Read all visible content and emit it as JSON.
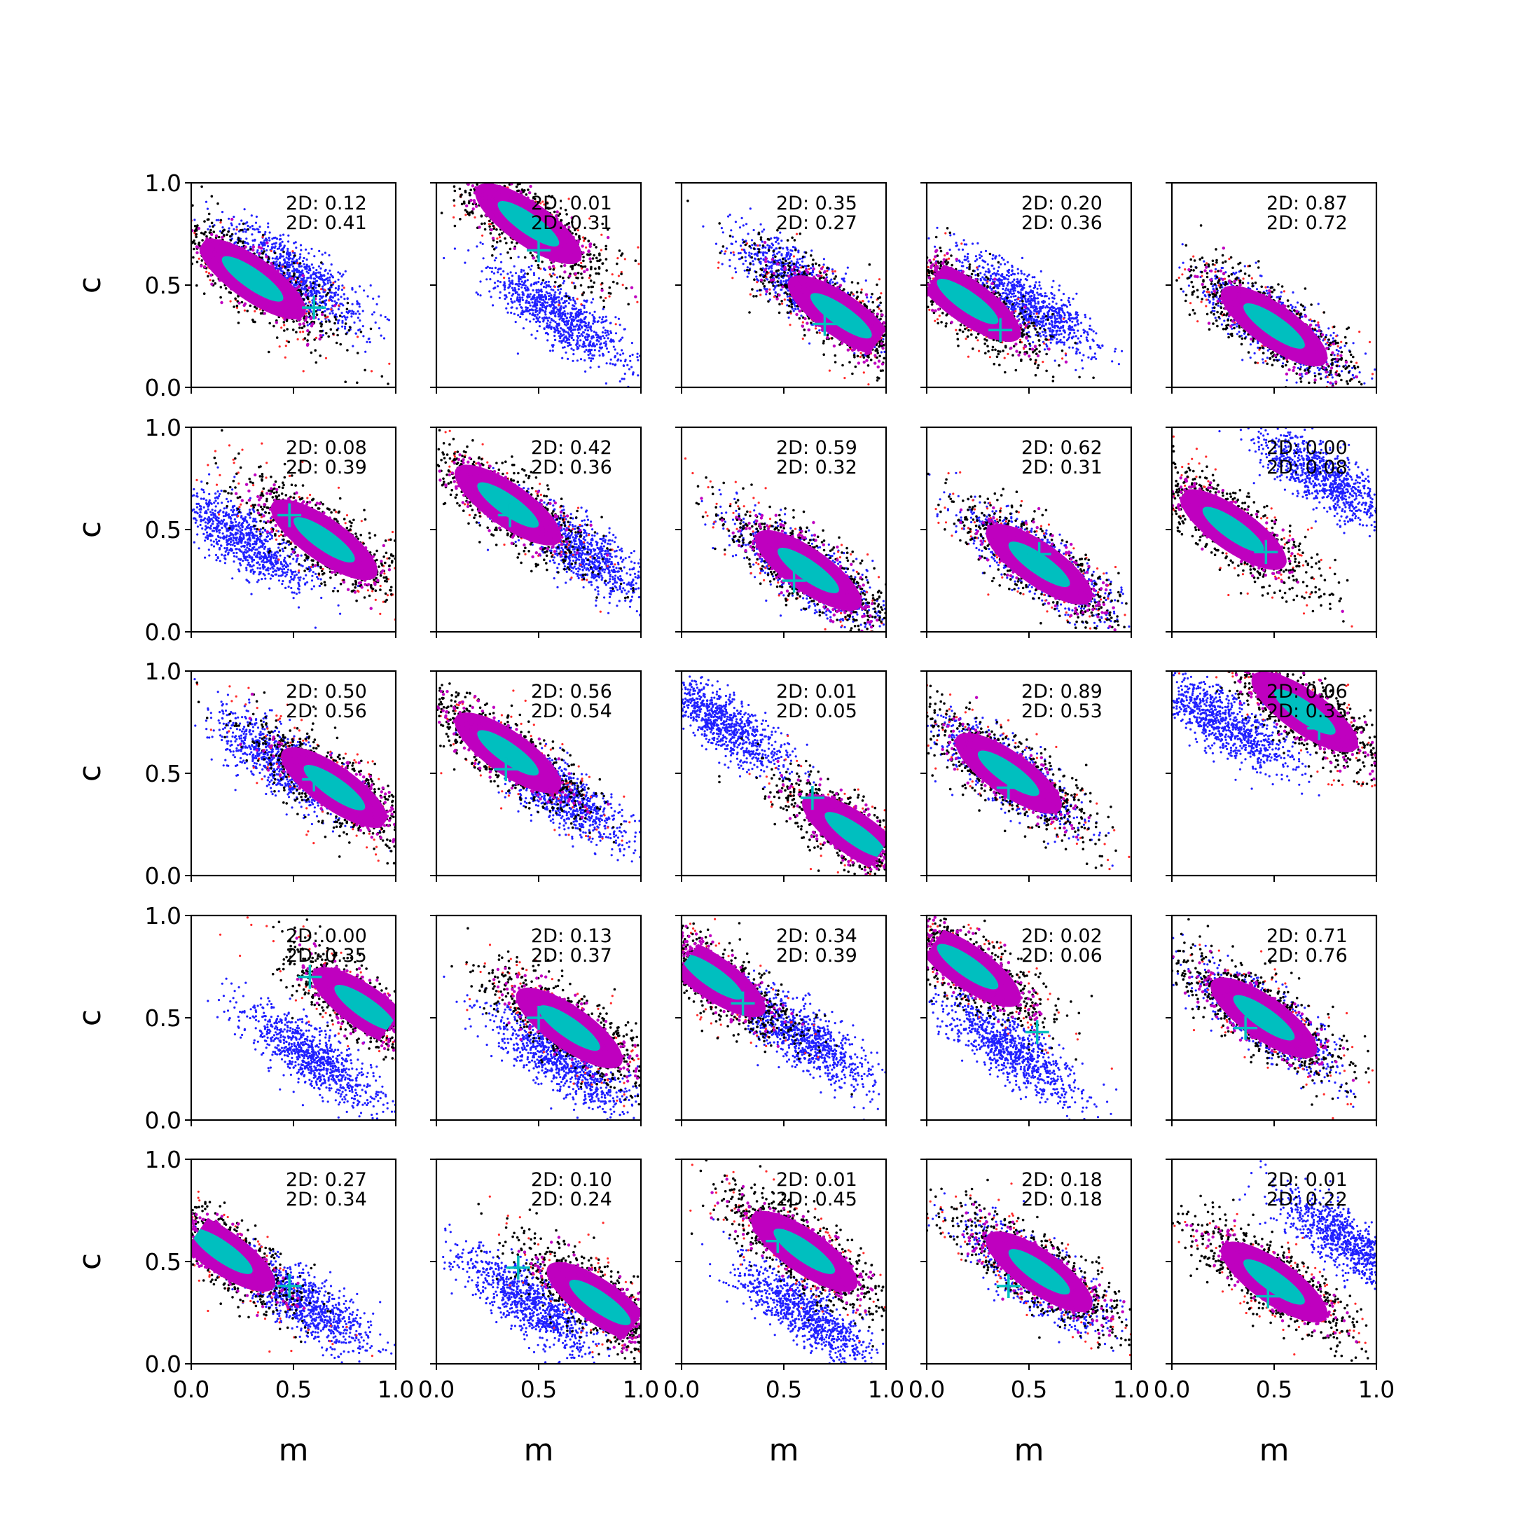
{
  "figure": {
    "xlabel": "m",
    "ylabel": "c",
    "xlim": [
      0,
      1
    ],
    "ylim": [
      0,
      1
    ],
    "x_ticks": [
      "0.0",
      "0.5",
      "1.0"
    ],
    "y_ticks": [
      "0.0",
      "0.5",
      "1.0"
    ],
    "colors": {
      "blue": "#2020ff",
      "red": "#ff2a2a",
      "black": "#000000",
      "magenta": "#bf00bf",
      "cyan": "#00bfbf"
    }
  },
  "chart_data": [
    {
      "type": "scatter",
      "row": 0,
      "col": 0,
      "annotations": [
        "2D: 0.12",
        "2D: 0.41"
      ],
      "main": {
        "cx": 0.3,
        "cy": 0.53
      },
      "offset": {
        "cx": 0.5,
        "cy": 0.55
      },
      "marker": {
        "x": 0.6,
        "y": 0.39
      }
    },
    {
      "type": "scatter",
      "row": 0,
      "col": 1,
      "annotations": [
        "2D: 0.01",
        "2D: 0.31"
      ],
      "main": {
        "cx": 0.45,
        "cy": 0.8
      },
      "offset": {
        "cx": 0.6,
        "cy": 0.35
      },
      "marker": {
        "x": 0.5,
        "y": 0.67
      }
    },
    {
      "type": "scatter",
      "row": 0,
      "col": 2,
      "annotations": [
        "2D: 0.35",
        "2D: 0.27"
      ],
      "main": {
        "cx": 0.78,
        "cy": 0.35
      },
      "offset": {
        "cx": 0.6,
        "cy": 0.5
      },
      "marker": {
        "x": 0.7,
        "y": 0.31
      }
    },
    {
      "type": "scatter",
      "row": 0,
      "col": 3,
      "annotations": [
        "2D: 0.20",
        "2D: 0.36"
      ],
      "main": {
        "cx": 0.2,
        "cy": 0.42
      },
      "offset": {
        "cx": 0.5,
        "cy": 0.4
      },
      "marker": {
        "x": 0.36,
        "y": 0.28
      }
    },
    {
      "type": "scatter",
      "row": 0,
      "col": 4,
      "annotations": [
        "2D: 0.87",
        "2D: 0.72"
      ],
      "main": {
        "cx": 0.5,
        "cy": 0.3
      },
      "offset": {
        "cx": 0.5,
        "cy": 0.3
      },
      "marker": {
        "x": 0.5,
        "y": 0.3
      }
    },
    {
      "type": "scatter",
      "row": 1,
      "col": 0,
      "annotations": [
        "2D: 0.08",
        "2D: 0.39"
      ],
      "main": {
        "cx": 0.65,
        "cy": 0.45
      },
      "offset": {
        "cx": 0.25,
        "cy": 0.45
      },
      "marker": {
        "x": 0.48,
        "y": 0.57
      }
    },
    {
      "type": "scatter",
      "row": 1,
      "col": 1,
      "annotations": [
        "2D: 0.42",
        "2D: 0.36"
      ],
      "main": {
        "cx": 0.35,
        "cy": 0.62
      },
      "offset": {
        "cx": 0.7,
        "cy": 0.4
      },
      "marker": {
        "x": 0.36,
        "y": 0.57
      }
    },
    {
      "type": "scatter",
      "row": 1,
      "col": 2,
      "annotations": [
        "2D: 0.59",
        "2D: 0.32"
      ],
      "main": {
        "cx": 0.62,
        "cy": 0.3
      },
      "offset": {
        "cx": 0.6,
        "cy": 0.3
      },
      "marker": {
        "x": 0.55,
        "y": 0.25
      }
    },
    {
      "type": "scatter",
      "row": 1,
      "col": 3,
      "annotations": [
        "2D: 0.62",
        "2D: 0.31"
      ],
      "main": {
        "cx": 0.55,
        "cy": 0.33
      },
      "offset": {
        "cx": 0.55,
        "cy": 0.33
      },
      "marker": {
        "x": 0.55,
        "y": 0.38
      }
    },
    {
      "type": "scatter",
      "row": 1,
      "col": 4,
      "annotations": [
        "2D: 0.00",
        "2D: 0.08"
      ],
      "main": {
        "cx": 0.3,
        "cy": 0.5
      },
      "offset": {
        "cx": 0.75,
        "cy": 0.75
      },
      "marker": {
        "x": 0.46,
        "y": 0.39
      }
    },
    {
      "type": "scatter",
      "row": 2,
      "col": 0,
      "annotations": [
        "2D: 0.50",
        "2D: 0.56"
      ],
      "main": {
        "cx": 0.7,
        "cy": 0.43
      },
      "offset": {
        "cx": 0.45,
        "cy": 0.55
      },
      "marker": {
        "x": 0.6,
        "y": 0.47
      }
    },
    {
      "type": "scatter",
      "row": 2,
      "col": 1,
      "annotations": [
        "2D: 0.56",
        "2D: 0.54"
      ],
      "main": {
        "cx": 0.35,
        "cy": 0.6
      },
      "offset": {
        "cx": 0.6,
        "cy": 0.4
      },
      "marker": {
        "x": 0.34,
        "y": 0.52
      }
    },
    {
      "type": "scatter",
      "row": 2,
      "col": 2,
      "annotations": [
        "2D: 0.01",
        "2D: 0.05"
      ],
      "main": {
        "cx": 0.85,
        "cy": 0.2
      },
      "offset": {
        "cx": 0.2,
        "cy": 0.75
      },
      "marker": {
        "x": 0.64,
        "y": 0.38
      }
    },
    {
      "type": "scatter",
      "row": 2,
      "col": 3,
      "annotations": [
        "2D: 0.89",
        "2D: 0.53"
      ],
      "main": {
        "cx": 0.4,
        "cy": 0.5
      },
      "offset": {
        "cx": 0.4,
        "cy": 0.5
      },
      "marker": {
        "x": 0.4,
        "y": 0.43
      }
    },
    {
      "type": "scatter",
      "row": 2,
      "col": 4,
      "annotations": [
        "2D: 0.06",
        "2D: 0.35"
      ],
      "main": {
        "cx": 0.65,
        "cy": 0.8
      },
      "offset": {
        "cx": 0.25,
        "cy": 0.75
      },
      "marker": {
        "x": 0.72,
        "y": 0.72
      }
    },
    {
      "type": "scatter",
      "row": 3,
      "col": 0,
      "annotations": [
        "2D: 0.00",
        "2D: 0.35"
      ],
      "main": {
        "cx": 0.85,
        "cy": 0.55
      },
      "offset": {
        "cx": 0.6,
        "cy": 0.3
      },
      "marker": {
        "x": 0.58,
        "y": 0.7
      }
    },
    {
      "type": "scatter",
      "row": 3,
      "col": 1,
      "annotations": [
        "2D: 0.13",
        "2D: 0.37"
      ],
      "main": {
        "cx": 0.65,
        "cy": 0.45
      },
      "offset": {
        "cx": 0.6,
        "cy": 0.3
      },
      "marker": {
        "x": 0.5,
        "y": 0.5
      }
    },
    {
      "type": "scatter",
      "row": 3,
      "col": 2,
      "annotations": [
        "2D: 0.34",
        "2D: 0.39"
      ],
      "main": {
        "cx": 0.15,
        "cy": 0.7
      },
      "offset": {
        "cx": 0.6,
        "cy": 0.4
      },
      "marker": {
        "x": 0.3,
        "y": 0.57
      }
    },
    {
      "type": "scatter",
      "row": 3,
      "col": 3,
      "annotations": [
        "2D: 0.02",
        "2D: 0.06"
      ],
      "main": {
        "cx": 0.2,
        "cy": 0.75
      },
      "offset": {
        "cx": 0.4,
        "cy": 0.35
      },
      "marker": {
        "x": 0.54,
        "y": 0.43
      }
    },
    {
      "type": "scatter",
      "row": 3,
      "col": 4,
      "annotations": [
        "2D: 0.71",
        "2D: 0.76"
      ],
      "main": {
        "cx": 0.45,
        "cy": 0.5
      },
      "offset": {
        "cx": 0.45,
        "cy": 0.5
      },
      "marker": {
        "x": 0.36,
        "y": 0.45
      }
    },
    {
      "type": "scatter",
      "row": 4,
      "col": 0,
      "annotations": [
        "2D: 0.27",
        "2D: 0.34"
      ],
      "main": {
        "cx": 0.15,
        "cy": 0.55
      },
      "offset": {
        "cx": 0.55,
        "cy": 0.3
      },
      "marker": {
        "x": 0.48,
        "y": 0.38
      }
    },
    {
      "type": "scatter",
      "row": 4,
      "col": 1,
      "annotations": [
        "2D: 0.10",
        "2D: 0.24"
      ],
      "main": {
        "cx": 0.8,
        "cy": 0.3
      },
      "offset": {
        "cx": 0.45,
        "cy": 0.3
      },
      "marker": {
        "x": 0.4,
        "y": 0.47
      }
    },
    {
      "type": "scatter",
      "row": 4,
      "col": 2,
      "annotations": [
        "2D: 0.01",
        "2D: 0.45"
      ],
      "main": {
        "cx": 0.6,
        "cy": 0.55
      },
      "offset": {
        "cx": 0.6,
        "cy": 0.25
      },
      "marker": {
        "x": 0.47,
        "y": 0.6
      }
    },
    {
      "type": "scatter",
      "row": 4,
      "col": 3,
      "annotations": [
        "2D: 0.18",
        "2D: 0.18"
      ],
      "main": {
        "cx": 0.55,
        "cy": 0.45
      },
      "offset": {
        "cx": 0.55,
        "cy": 0.42
      },
      "marker": {
        "x": 0.4,
        "y": 0.38
      }
    },
    {
      "type": "scatter",
      "row": 4,
      "col": 4,
      "annotations": [
        "2D: 0.01",
        "2D: 0.22"
      ],
      "main": {
        "cx": 0.5,
        "cy": 0.4
      },
      "offset": {
        "cx": 0.85,
        "cy": 0.6
      },
      "marker": {
        "x": 0.47,
        "y": 0.33
      }
    }
  ]
}
